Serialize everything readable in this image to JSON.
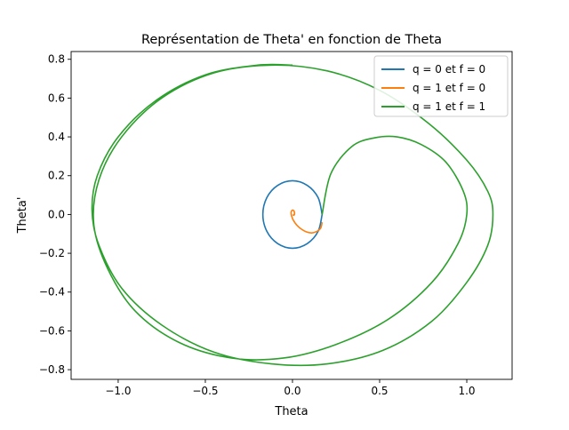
{
  "chart_data": {
    "type": "line",
    "title": "Représentation de Theta' en fonction de Theta",
    "xlabel": "Theta",
    "ylabel": "Theta'",
    "xlim": [
      -1.27,
      1.26
    ],
    "ylim": [
      -0.85,
      0.84
    ],
    "xticks": [
      -1.0,
      -0.5,
      0.0,
      0.5,
      1.0
    ],
    "xtick_labels": [
      "−1.0",
      "−0.5",
      "0.0",
      "0.5",
      "1.0"
    ],
    "yticks": [
      -0.8,
      -0.6,
      -0.4,
      -0.2,
      0.0,
      0.2,
      0.4,
      0.6,
      0.8
    ],
    "ytick_labels": [
      "−0.8",
      "−0.6",
      "−0.4",
      "−0.2",
      "0.0",
      "0.2",
      "0.4",
      "0.6",
      "0.8"
    ],
    "grid": false,
    "legend_position": "top-right",
    "series": [
      {
        "name": "q = 0 et f = 0",
        "color": "#1f77b4",
        "x": [
          0.17,
          0.147,
          0.085,
          0.0,
          -0.085,
          -0.147,
          -0.17,
          -0.147,
          -0.085,
          0.0,
          0.085,
          0.147,
          0.17
        ],
        "y": [
          0.0,
          0.087,
          0.15,
          0.174,
          0.15,
          0.087,
          0.0,
          -0.087,
          -0.15,
          -0.174,
          -0.15,
          -0.087,
          0.0
        ]
      },
      {
        "name": "q = 1 et f = 0",
        "color": "#ff7f0e",
        "x": [
          0.17,
          0.162,
          0.14,
          0.11,
          0.08,
          0.05,
          0.025,
          0.005,
          -0.005,
          -0.008,
          -0.004,
          0.004,
          0.01,
          0.012,
          0.01,
          0.006,
          0.002
        ],
        "y": [
          -0.04,
          -0.07,
          -0.087,
          -0.095,
          -0.09,
          -0.075,
          -0.055,
          -0.03,
          -0.008,
          0.01,
          0.02,
          0.022,
          0.015,
          0.006,
          -0.002,
          -0.004,
          0.0
        ]
      },
      {
        "name": "q = 1 et f = 1",
        "color": "#2ca02c",
        "x": [
          0.17,
          0.22,
          0.34,
          0.47,
          0.6,
          0.74,
          0.88,
          0.98,
          1.0,
          0.95,
          0.8,
          0.55,
          0.25,
          -0.05,
          -0.35,
          -0.65,
          -0.9,
          -1.06,
          -1.14,
          -1.11,
          -0.98,
          -0.75,
          -0.45,
          -0.12,
          0.2,
          0.5,
          0.78,
          1.0,
          1.12,
          1.15,
          1.12,
          1.0,
          0.8,
          0.52,
          0.2,
          -0.12,
          -0.45,
          -0.75,
          -0.98,
          -1.11,
          -1.15,
          -1.12,
          -1.0,
          -0.78,
          -0.5,
          -0.2,
          0.0
        ],
        "y": [
          0.0,
          0.21,
          0.35,
          0.395,
          0.4,
          0.36,
          0.27,
          0.12,
          0.0,
          -0.15,
          -0.35,
          -0.54,
          -0.67,
          -0.74,
          -0.74,
          -0.66,
          -0.5,
          -0.28,
          -0.05,
          0.18,
          0.4,
          0.6,
          0.73,
          0.77,
          0.74,
          0.64,
          0.47,
          0.28,
          0.12,
          0.0,
          -0.16,
          -0.35,
          -0.55,
          -0.7,
          -0.77,
          -0.77,
          -0.71,
          -0.57,
          -0.38,
          -0.16,
          0.02,
          0.2,
          0.4,
          0.59,
          0.72,
          0.77,
          0.77
        ]
      }
    ]
  }
}
